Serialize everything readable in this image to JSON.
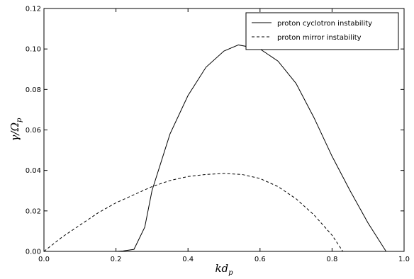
{
  "chart_data": {
    "type": "line",
    "xlabel": {
      "text": "kd",
      "sub": "p"
    },
    "ylabel": {
      "text": "γ/Ω",
      "sub": "p"
    },
    "xlim": [
      0,
      1.0
    ],
    "ylim": [
      0,
      0.12
    ],
    "xticks": [
      {
        "value": 0,
        "label": "0.0"
      },
      0.2,
      0.4,
      0.6,
      0.8,
      {
        "value": 1.0,
        "label": "1.0"
      }
    ],
    "yticks": [
      {
        "value": 0,
        "label": "0.00"
      },
      0.02,
      0.04,
      0.06,
      0.08,
      {
        "value": 0.1,
        "label": "0.10"
      },
      0.12
    ],
    "legend": "upper right",
    "series": [
      {
        "name": "proton cyclotron instability",
        "color": "#000000",
        "dash": false,
        "x": [
          0,
          0.2,
          0.22,
          0.25,
          0.28,
          0.3,
          0.35,
          0.4,
          0.45,
          0.5,
          0.54,
          0.6,
          0.65,
          0.7,
          0.75,
          0.8,
          0.85,
          0.9,
          0.95
        ],
        "values": [
          0,
          0,
          0.0002,
          0.001,
          0.012,
          0.03,
          0.058,
          0.077,
          0.091,
          0.099,
          0.102,
          0.1,
          0.094,
          0.083,
          0.066,
          0.047,
          0.03,
          0.014,
          0
        ]
      },
      {
        "name": "proton mirror instability",
        "color": "#000000",
        "dash": true,
        "x": [
          0,
          0.05,
          0.1,
          0.15,
          0.2,
          0.25,
          0.3,
          0.35,
          0.4,
          0.45,
          0.5,
          0.55,
          0.6,
          0.65,
          0.7,
          0.75,
          0.8,
          0.83
        ],
        "values": [
          0,
          0.007,
          0.013,
          0.019,
          0.024,
          0.028,
          0.032,
          0.035,
          0.037,
          0.038,
          0.0385,
          0.038,
          0.036,
          0.032,
          0.026,
          0.018,
          0.008,
          0
        ]
      }
    ]
  }
}
